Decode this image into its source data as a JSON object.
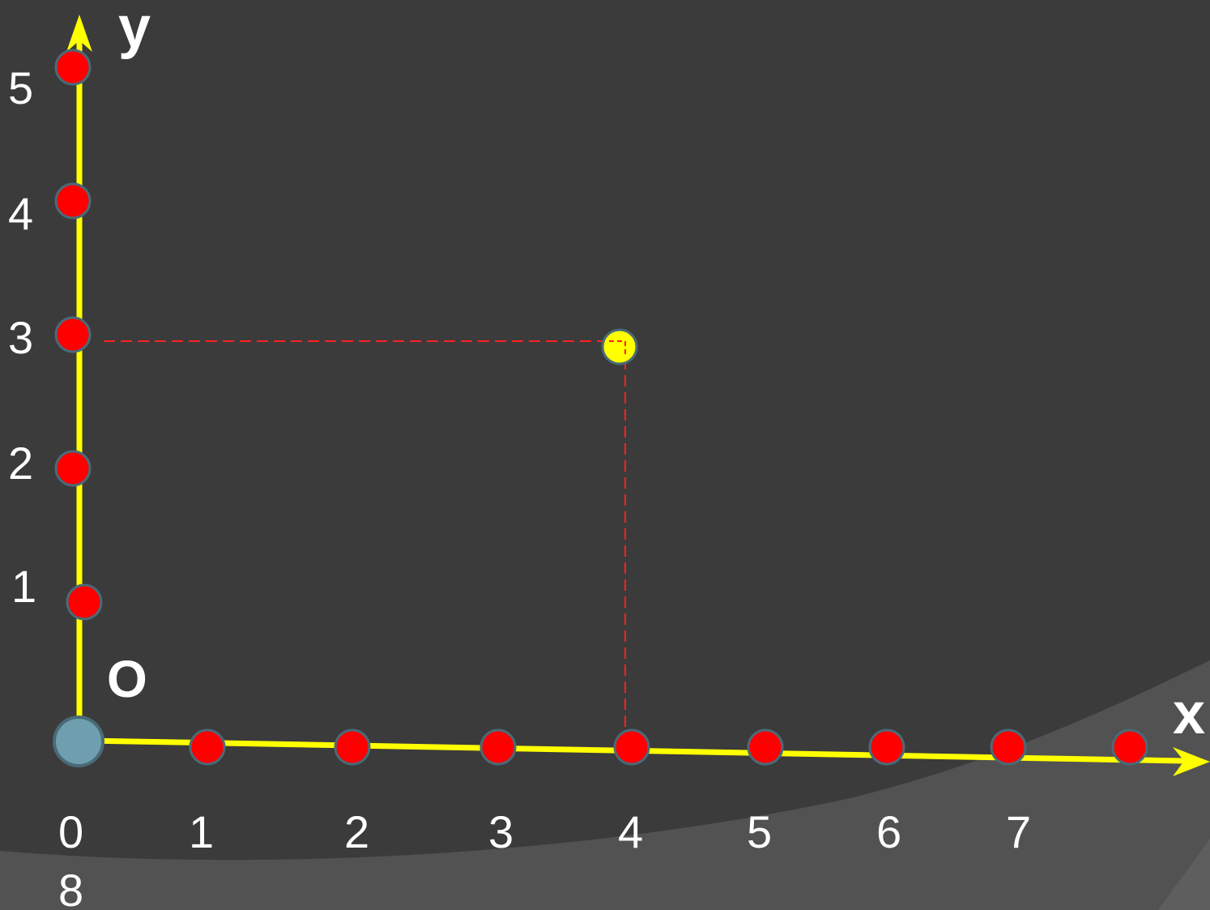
{
  "colors": {
    "background": "#3b3b3b",
    "background_band": "#525252",
    "axis": "#ffff00",
    "point_marker": "#ff0000",
    "point_stroke": "#4a6a78",
    "origin_marker": "#6f9faf",
    "highlight_point": "#ffff00",
    "guide_line": "#ff2020",
    "text": "#ffffff"
  },
  "axes": {
    "x_label": "x",
    "y_label": "y",
    "origin_label": "O"
  },
  "x_ticks": [
    "0",
    "1",
    "2",
    "3",
    "4",
    "5",
    "6",
    "7"
  ],
  "x_tick_extra": "8",
  "y_ticks": [
    "1",
    "2",
    "3",
    "4",
    "5"
  ],
  "highlight": {
    "x": 4,
    "y": 3
  }
}
